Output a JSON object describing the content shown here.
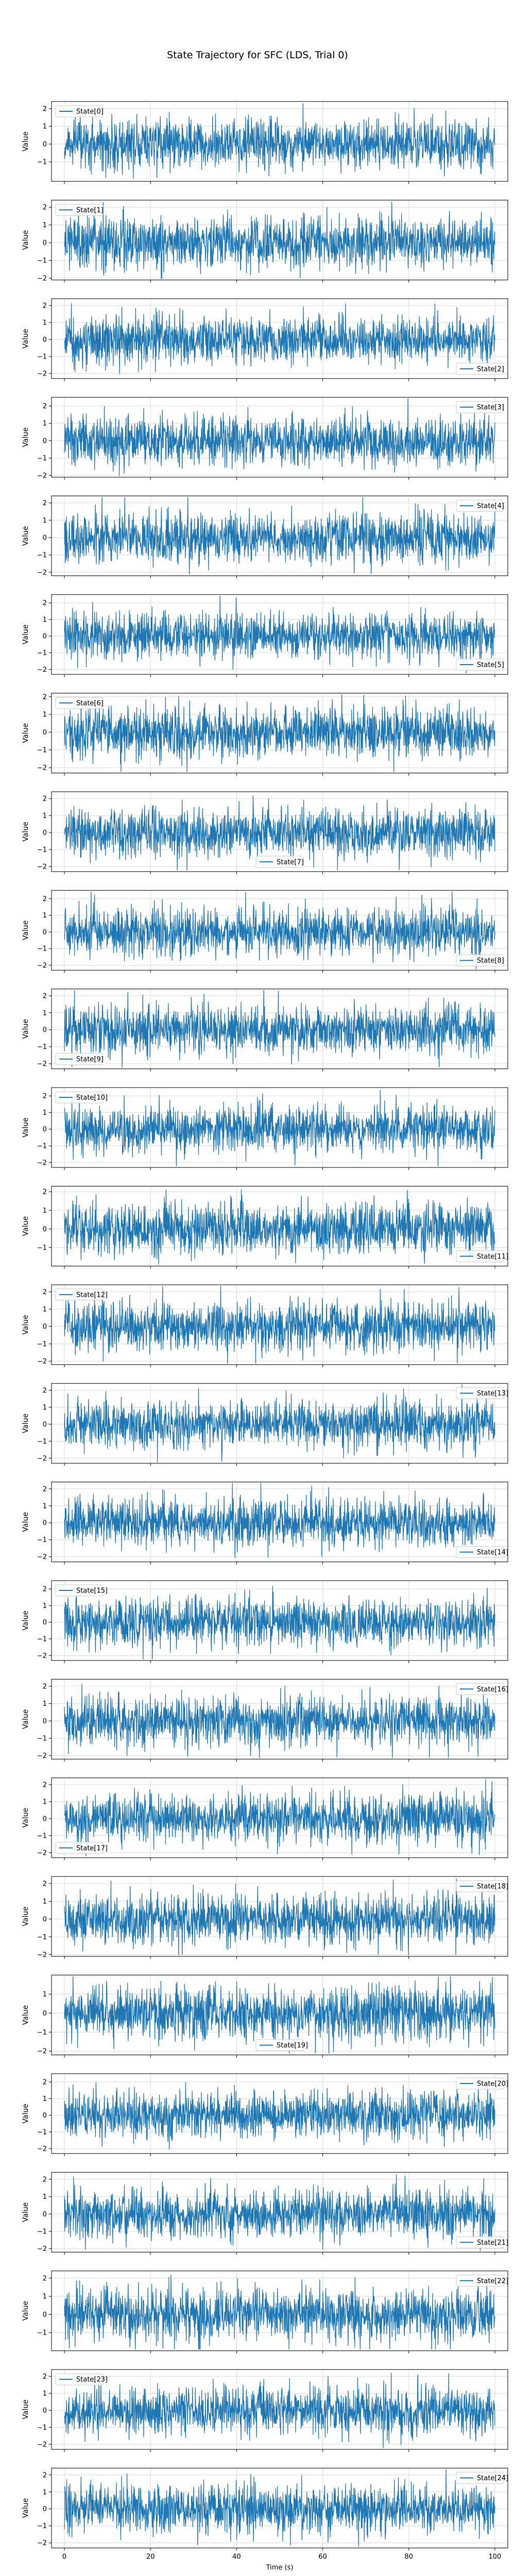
{
  "title": "State Trajectory for SFC (LDS, Trial 0)",
  "colors": {
    "line": "#1f77b4",
    "grid": "#d9d9d9",
    "axes": "#000000"
  },
  "chart_data": {
    "type": "line",
    "title": "State Trajectory for SFC (LDS, Trial 0)",
    "xlabel": "Time (s)",
    "ylabel": "Value",
    "xlim": [
      -3,
      103
    ],
    "xticks": [
      0,
      20,
      40,
      60,
      80,
      100
    ],
    "grid": true,
    "sharex": true,
    "noise_sigma": 0.7,
    "panels": [
      {
        "name": "State[0]",
        "ylim": [
          -2.1,
          2.4
        ],
        "yticks": [
          -1,
          0,
          1,
          2
        ],
        "legend": "top-left"
      },
      {
        "name": "State[1]",
        "ylim": [
          -2.1,
          2.4
        ],
        "yticks": [
          -2,
          -1,
          0,
          1,
          2
        ],
        "legend": "top-left"
      },
      {
        "name": "State[2]",
        "ylim": [
          -2.3,
          2.4
        ],
        "yticks": [
          -2,
          -1,
          0,
          1,
          2
        ],
        "legend": "bottom-right"
      },
      {
        "name": "State[3]",
        "ylim": [
          -2.1,
          2.5
        ],
        "yticks": [
          -2,
          -1,
          0,
          1,
          2
        ],
        "legend": "top-right"
      },
      {
        "name": "State[4]",
        "ylim": [
          -2.2,
          2.4
        ],
        "yticks": [
          -2,
          -1,
          0,
          1,
          2
        ],
        "legend": "top-right"
      },
      {
        "name": "State[5]",
        "ylim": [
          -2.3,
          2.5
        ],
        "yticks": [
          -2,
          -1,
          0,
          1,
          2
        ],
        "legend": "bottom-right"
      },
      {
        "name": "State[6]",
        "ylim": [
          -2.3,
          2.2
        ],
        "yticks": [
          -2,
          -1,
          0,
          1,
          2
        ],
        "legend": "top-left"
      },
      {
        "name": "State[7]",
        "ylim": [
          -2.3,
          2.4
        ],
        "yticks": [
          -2,
          -1,
          0,
          1,
          2
        ],
        "legend": "lower-center"
      },
      {
        "name": "State[8]",
        "ylim": [
          -2.3,
          2.5
        ],
        "yticks": [
          -2,
          -1,
          0,
          1,
          2
        ],
        "legend": "bottom-right"
      },
      {
        "name": "State[9]",
        "ylim": [
          -2.3,
          2.4
        ],
        "yticks": [
          -2,
          -1,
          0,
          1,
          2
        ],
        "legend": "bottom-left"
      },
      {
        "name": "State[10]",
        "ylim": [
          -2.3,
          2.5
        ],
        "yticks": [
          -2,
          -1,
          0,
          1,
          2
        ],
        "legend": "top-left"
      },
      {
        "name": "State[11]",
        "ylim": [
          -2.0,
          2.3
        ],
        "yticks": [
          -1,
          0,
          1,
          2
        ],
        "legend": "bottom-right"
      },
      {
        "name": "State[12]",
        "ylim": [
          -2.2,
          2.4
        ],
        "yticks": [
          -2,
          -1,
          0,
          1,
          2
        ],
        "legend": "top-left"
      },
      {
        "name": "State[13]",
        "ylim": [
          -2.3,
          2.4
        ],
        "yticks": [
          -2,
          -1,
          0,
          1,
          2
        ],
        "legend": "top-right"
      },
      {
        "name": "State[14]",
        "ylim": [
          -2.3,
          2.4
        ],
        "yticks": [
          -2,
          -1,
          0,
          1,
          2
        ],
        "legend": "bottom-right"
      },
      {
        "name": "State[15]",
        "ylim": [
          -2.3,
          2.5
        ],
        "yticks": [
          -2,
          -1,
          0,
          1,
          2
        ],
        "legend": "top-left"
      },
      {
        "name": "State[16]",
        "ylim": [
          -2.2,
          2.4
        ],
        "yticks": [
          -2,
          -1,
          0,
          1,
          2
        ],
        "legend": "top-right"
      },
      {
        "name": "State[17]",
        "ylim": [
          -2.3,
          2.4
        ],
        "yticks": [
          -2,
          -1,
          0,
          1,
          2
        ],
        "legend": "bottom-left"
      },
      {
        "name": "State[18]",
        "ylim": [
          -2.1,
          2.4
        ],
        "yticks": [
          -2,
          -1,
          0,
          1,
          2
        ],
        "legend": "top-right"
      },
      {
        "name": "State[19]",
        "ylim": [
          -2.2,
          2.0
        ],
        "yticks": [
          -2,
          -1,
          0,
          1
        ],
        "legend": "lower-center"
      },
      {
        "name": "State[20]",
        "ylim": [
          -2.3,
          2.5
        ],
        "yticks": [
          -2,
          -1,
          0,
          1,
          2
        ],
        "legend": "top-right"
      },
      {
        "name": "State[21]",
        "ylim": [
          -2.2,
          2.4
        ],
        "yticks": [
          -2,
          -1,
          0,
          1,
          2
        ],
        "legend": "bottom-right"
      },
      {
        "name": "State[22]",
        "ylim": [
          -2.0,
          2.4
        ],
        "yticks": [
          -1,
          0,
          1,
          2
        ],
        "legend": "top-right"
      },
      {
        "name": "State[23]",
        "ylim": [
          -2.3,
          2.4
        ],
        "yticks": [
          -2,
          -1,
          0,
          1,
          2
        ],
        "legend": "top-left"
      },
      {
        "name": "State[24]",
        "ylim": [
          -2.3,
          2.4
        ],
        "yticks": [
          -2,
          -1,
          0,
          1,
          2
        ],
        "legend": "top-right"
      }
    ]
  }
}
